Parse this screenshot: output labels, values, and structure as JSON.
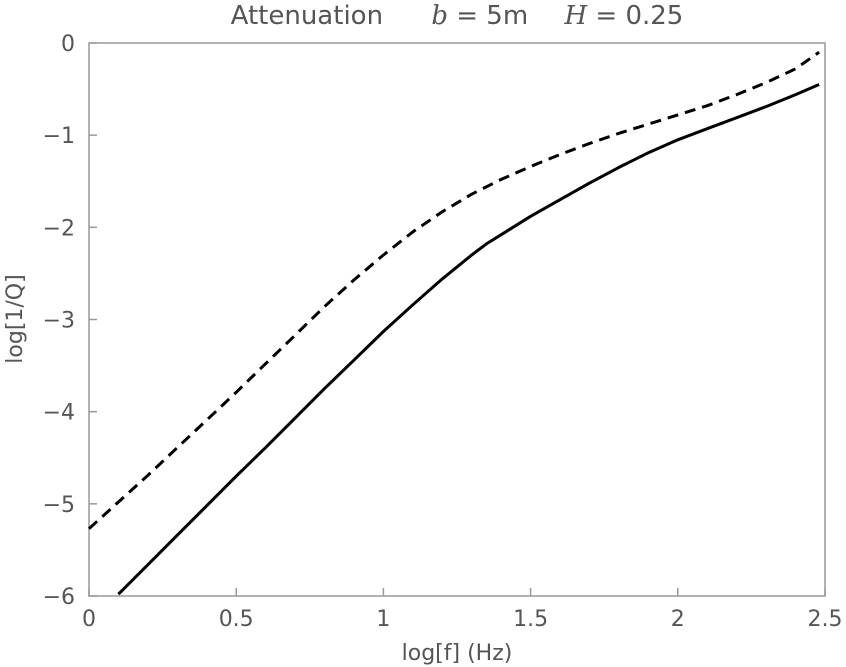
{
  "chart_data": {
    "type": "line",
    "title": {
      "prefix": "Attenuation",
      "b_symbol": "b",
      "b_value": " = 5m",
      "h_symbol": "H",
      "h_value": " = 0.25"
    },
    "xlabel": "log[f] (Hz)",
    "ylabel": "log[1/Q]",
    "xlim": [
      0,
      2.5
    ],
    "ylim": [
      -6,
      0
    ],
    "x_ticks": [
      0,
      0.5,
      1,
      1.5,
      2,
      2.5
    ],
    "x_tick_labels": [
      "0",
      "0.5",
      "1",
      "1.5",
      "2",
      "2.5"
    ],
    "y_ticks": [
      0,
      -1,
      -2,
      -3,
      -4,
      -5,
      -6
    ],
    "y_tick_labels": [
      "0",
      "−1",
      "−2",
      "−3",
      "−4",
      "−5",
      "−6"
    ],
    "grid": false,
    "series": [
      {
        "style": "dashed",
        "color": "#000000",
        "x": [
          0.0,
          0.1,
          0.2,
          0.3,
          0.4,
          0.5,
          0.6,
          0.7,
          0.8,
          0.9,
          1.0,
          1.1,
          1.2,
          1.3,
          1.4,
          1.5,
          1.6,
          1.7,
          1.8,
          1.9,
          2.0,
          2.1,
          2.2,
          2.3,
          2.4,
          2.48
        ],
        "y": [
          -5.27,
          -4.98,
          -4.69,
          -4.39,
          -4.09,
          -3.79,
          -3.48,
          -3.17,
          -2.86,
          -2.57,
          -2.3,
          -2.05,
          -1.83,
          -1.64,
          -1.48,
          -1.34,
          -1.21,
          -1.09,
          -0.98,
          -0.88,
          -0.78,
          -0.68,
          -0.56,
          -0.43,
          -0.28,
          -0.1
        ]
      },
      {
        "style": "solid",
        "color": "#000000",
        "x": [
          0.1,
          0.2,
          0.3,
          0.4,
          0.5,
          0.6,
          0.7,
          0.8,
          0.9,
          1.0,
          1.1,
          1.2,
          1.3,
          1.35,
          1.4,
          1.5,
          1.6,
          1.7,
          1.8,
          1.9,
          2.0,
          2.1,
          2.2,
          2.3,
          2.4,
          2.48
        ],
        "y": [
          -5.98,
          -5.66,
          -5.34,
          -5.02,
          -4.7,
          -4.39,
          -4.07,
          -3.75,
          -3.44,
          -3.13,
          -2.84,
          -2.56,
          -2.3,
          -2.18,
          -2.08,
          -1.88,
          -1.7,
          -1.52,
          -1.35,
          -1.19,
          -1.05,
          -0.93,
          -0.81,
          -0.69,
          -0.56,
          -0.45
        ]
      }
    ]
  }
}
